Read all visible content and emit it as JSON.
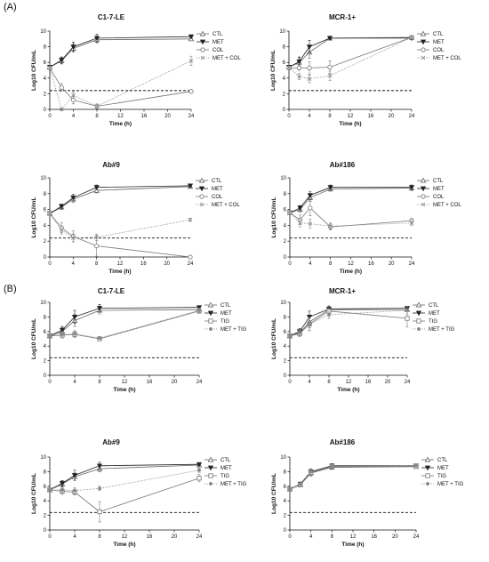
{
  "figure": {
    "section_a": "(A)",
    "section_b": "(B)"
  },
  "chart_data": [
    {
      "type": "line",
      "title": "C1-7-LE",
      "xlabel": "Time (h)",
      "ylabel": "Log10 CFU/mL",
      "xlim": [
        0,
        24
      ],
      "ylim": [
        0,
        10
      ],
      "xticks": [
        0,
        4,
        8,
        12,
        16,
        20,
        24
      ],
      "yticks": [
        0,
        2,
        4,
        6,
        8,
        10
      ],
      "threshold": 2.4,
      "x": [
        0,
        2,
        4,
        8,
        24
      ],
      "legend": "right",
      "series": [
        {
          "name": "CTL",
          "marker": "tri-up-open",
          "dash": "solid",
          "values": [
            5.4,
            6.2,
            7.8,
            8.9,
            9.0
          ],
          "errors": [
            0.2,
            0.4,
            0.5,
            0.4,
            0.2
          ]
        },
        {
          "name": "MET",
          "marker": "tri-down-filled",
          "dash": "solid",
          "values": [
            5.4,
            6.3,
            8.0,
            9.1,
            9.3
          ],
          "errors": [
            0.2,
            0.4,
            0.6,
            0.5,
            0.2
          ]
        },
        {
          "name": "COL",
          "marker": "circle-open",
          "dash": "solid",
          "values": [
            5.3,
            2.8,
            1.2,
            0.4,
            2.3
          ],
          "errors": [
            0.2,
            0.5,
            0.5,
            0.3,
            0.2
          ]
        },
        {
          "name": "MET + COL",
          "marker": "x",
          "dash": "dot",
          "values": [
            5.3,
            0.0,
            1.8,
            0.4,
            6.2
          ],
          "errors": [
            0.2,
            0.2,
            0.4,
            0.3,
            0.6
          ]
        }
      ]
    },
    {
      "type": "line",
      "title": "MCR-1+",
      "xlabel": "Time (h)",
      "ylabel": "Log10 CFU/mL",
      "xlim": [
        0,
        24
      ],
      "ylim": [
        0,
        10
      ],
      "xticks": [
        0,
        4,
        8,
        12,
        16,
        20,
        24
      ],
      "yticks": [
        0,
        2,
        4,
        6,
        8,
        10
      ],
      "threshold": 2.4,
      "x": [
        0,
        2,
        4,
        8,
        24
      ],
      "legend": "right",
      "series": [
        {
          "name": "CTL",
          "marker": "tri-up-open",
          "dash": "solid",
          "values": [
            5.4,
            6.0,
            7.3,
            9.1,
            9.2
          ],
          "errors": [
            0.2,
            0.6,
            0.8,
            0.2,
            0.2
          ]
        },
        {
          "name": "MET",
          "marker": "tri-down-filled",
          "dash": "solid",
          "values": [
            5.4,
            6.1,
            8.0,
            9.1,
            9.1
          ],
          "errors": [
            0.2,
            0.6,
            0.8,
            0.2,
            0.2
          ]
        },
        {
          "name": "COL",
          "marker": "circle-open",
          "dash": "solid",
          "values": [
            5.3,
            5.3,
            5.3,
            5.4,
            9.2
          ],
          "errors": [
            0.2,
            0.3,
            0.8,
            0.8,
            0.2
          ]
        },
        {
          "name": "MET + COL",
          "marker": "x",
          "dash": "dot",
          "values": [
            5.3,
            4.2,
            3.9,
            4.3,
            9.2
          ],
          "errors": [
            0.2,
            0.4,
            0.5,
            0.6,
            0.2
          ]
        }
      ]
    },
    {
      "type": "line",
      "title": "Ab#9",
      "xlabel": "Time (h)",
      "ylabel": "Log10 CFU/mL",
      "xlim": [
        0,
        24
      ],
      "ylim": [
        0,
        10
      ],
      "xticks": [
        0,
        4,
        8,
        12,
        16,
        20,
        24
      ],
      "yticks": [
        0,
        2,
        4,
        6,
        8,
        10
      ],
      "threshold": 2.4,
      "x": [
        0,
        2,
        4,
        8,
        24
      ],
      "legend": "right",
      "series": [
        {
          "name": "CTL",
          "marker": "tri-up-open",
          "dash": "solid",
          "values": [
            5.5,
            6.3,
            7.3,
            8.4,
            8.9
          ],
          "errors": [
            0.2,
            0.3,
            0.4,
            0.3,
            0.2
          ]
        },
        {
          "name": "MET",
          "marker": "tri-down-filled",
          "dash": "solid",
          "values": [
            5.5,
            6.4,
            7.5,
            8.8,
            9.0
          ],
          "errors": [
            0.2,
            0.3,
            0.4,
            0.3,
            0.2
          ]
        },
        {
          "name": "COL",
          "marker": "circle-open",
          "dash": "solid",
          "values": [
            5.5,
            3.7,
            2.6,
            1.4,
            0.0
          ],
          "errors": [
            0.2,
            0.6,
            0.7,
            1.3,
            0.1
          ]
        },
        {
          "name": "MET + COL",
          "marker": "x",
          "dash": "dot",
          "values": [
            5.5,
            3.4,
            2.4,
            2.5,
            4.7
          ],
          "errors": [
            0.2,
            0.5,
            0.5,
            0.4,
            0.2
          ]
        }
      ]
    },
    {
      "type": "line",
      "title": "Ab#186",
      "xlabel": "Time (h)",
      "ylabel": "Log10 CFU/mL",
      "xlim": [
        0,
        24
      ],
      "ylim": [
        0,
        10
      ],
      "xticks": [
        0,
        4,
        8,
        12,
        16,
        20,
        24
      ],
      "yticks": [
        0,
        2,
        4,
        6,
        8,
        10
      ],
      "threshold": 2.4,
      "x": [
        0,
        2,
        4,
        8,
        24
      ],
      "legend": "right",
      "series": [
        {
          "name": "CTL",
          "marker": "tri-up-open",
          "dash": "solid",
          "values": [
            5.6,
            6.0,
            7.5,
            8.6,
            8.7
          ],
          "errors": [
            0.2,
            0.3,
            0.5,
            0.3,
            0.3
          ]
        },
        {
          "name": "MET",
          "marker": "tri-down-filled",
          "dash": "solid",
          "values": [
            5.6,
            6.2,
            7.8,
            8.8,
            8.8
          ],
          "errors": [
            0.2,
            0.3,
            0.5,
            0.3,
            0.3
          ]
        },
        {
          "name": "COL",
          "marker": "circle-open",
          "dash": "solid",
          "values": [
            5.6,
            4.7,
            6.2,
            3.8,
            4.6
          ],
          "errors": [
            0.2,
            0.6,
            1.0,
            0.4,
            0.3
          ]
        },
        {
          "name": "MET + COL",
          "marker": "x",
          "dash": "dot",
          "values": [
            5.6,
            4.3,
            4.2,
            3.9,
            4.3
          ],
          "errors": [
            0.2,
            0.5,
            0.6,
            0.4,
            0.3
          ]
        }
      ]
    },
    {
      "type": "line",
      "title": "C1-7-LE",
      "xlabel": "Time (h)",
      "ylabel": "Log10 CFU/mL",
      "xlim": [
        0,
        24
      ],
      "ylim": [
        0,
        10
      ],
      "xticks": [
        0,
        4,
        8,
        12,
        16,
        20,
        24
      ],
      "yticks": [
        0,
        2,
        4,
        6,
        8,
        10
      ],
      "threshold": 2.4,
      "x": [
        0,
        2,
        4,
        8,
        24
      ],
      "legend": "right",
      "series": [
        {
          "name": "CTL",
          "marker": "tri-up-open",
          "dash": "solid",
          "values": [
            5.4,
            6.0,
            7.5,
            8.9,
            9.0
          ],
          "errors": [
            0.2,
            0.5,
            0.8,
            0.5,
            0.2
          ]
        },
        {
          "name": "MET",
          "marker": "tri-down-filled",
          "dash": "solid",
          "values": [
            5.4,
            6.2,
            8.0,
            9.2,
            9.3
          ],
          "errors": [
            0.2,
            0.5,
            0.9,
            0.5,
            0.2
          ]
        },
        {
          "name": "TIG",
          "marker": "square-open",
          "dash": "solid",
          "values": [
            5.4,
            5.5,
            5.6,
            5.0,
            8.8
          ],
          "errors": [
            0.2,
            0.4,
            0.4,
            0.2,
            0.3
          ]
        },
        {
          "name": "MET + TIG",
          "marker": "dot-filled",
          "dash": "dot",
          "values": [
            5.4,
            5.6,
            5.7,
            5.1,
            8.9
          ],
          "errors": [
            0.2,
            0.4,
            0.4,
            0.2,
            0.3
          ]
        }
      ]
    },
    {
      "type": "line",
      "title": "MCR-1+",
      "xlabel": "Time (h)",
      "ylabel": "Log10 CFU/mL",
      "xlim": [
        0,
        24
      ],
      "ylim": [
        0,
        10
      ],
      "xticks": [
        0,
        4,
        8,
        12,
        16,
        20,
        24
      ],
      "yticks": [
        0,
        2,
        4,
        6,
        8,
        10
      ],
      "threshold": 2.4,
      "x": [
        0,
        2,
        4,
        8,
        24
      ],
      "legend": "right",
      "series": [
        {
          "name": "CTL",
          "marker": "tri-up-open",
          "dash": "solid",
          "values": [
            5.4,
            5.8,
            7.3,
            9.0,
            9.0
          ],
          "errors": [
            0.2,
            0.4,
            0.8,
            0.4,
            0.2
          ]
        },
        {
          "name": "MET",
          "marker": "tri-down-filled",
          "dash": "solid",
          "values": [
            5.4,
            6.0,
            8.0,
            9.1,
            9.2
          ],
          "errors": [
            0.2,
            0.4,
            0.8,
            0.4,
            0.2
          ]
        },
        {
          "name": "TIG",
          "marker": "square-open",
          "dash": "solid",
          "values": [
            5.4,
            5.7,
            7.0,
            8.8,
            7.8
          ],
          "errors": [
            0.2,
            0.4,
            0.9,
            0.5,
            1.2
          ]
        },
        {
          "name": "MET + TIG",
          "marker": "dot-filled",
          "dash": "dot",
          "values": [
            5.4,
            5.8,
            7.0,
            8.3,
            8.9
          ],
          "errors": [
            0.2,
            0.4,
            0.9,
            0.5,
            0.5
          ]
        }
      ]
    },
    {
      "type": "line",
      "title": "Ab#9",
      "xlabel": "Time (h)",
      "ylabel": "Log10 CFU/mL",
      "xlim": [
        0,
        24
      ],
      "ylim": [
        0,
        10
      ],
      "xticks": [
        0,
        4,
        8,
        12,
        16,
        20,
        24
      ],
      "yticks": [
        0,
        2,
        4,
        6,
        8,
        10
      ],
      "threshold": 2.4,
      "x": [
        0,
        2,
        4,
        8,
        24
      ],
      "legend": "right",
      "series": [
        {
          "name": "CTL",
          "marker": "tri-up-open",
          "dash": "solid",
          "values": [
            5.5,
            6.3,
            7.3,
            8.4,
            8.9
          ],
          "errors": [
            0.2,
            0.4,
            0.5,
            0.4,
            0.2
          ]
        },
        {
          "name": "MET",
          "marker": "tri-down-filled",
          "dash": "solid",
          "values": [
            5.5,
            6.4,
            7.5,
            8.8,
            9.0
          ],
          "errors": [
            0.2,
            0.4,
            0.7,
            0.5,
            0.2
          ]
        },
        {
          "name": "TIG",
          "marker": "square-open",
          "dash": "solid",
          "values": [
            5.5,
            5.3,
            5.2,
            2.5,
            7.1
          ],
          "errors": [
            0.2,
            0.4,
            0.4,
            1.4,
            0.5
          ]
        },
        {
          "name": "MET + TIG",
          "marker": "dot-filled",
          "dash": "dot",
          "values": [
            5.5,
            5.5,
            5.4,
            5.7,
            8.2
          ],
          "errors": [
            0.2,
            0.3,
            0.4,
            0.3,
            0.3
          ]
        }
      ]
    },
    {
      "type": "line",
      "title": "Ab#186",
      "xlabel": "Time (h)",
      "ylabel": "Log10 CFU/mL",
      "xlim": [
        0,
        24
      ],
      "ylim": [
        0,
        10
      ],
      "xticks": [
        0,
        4,
        8,
        12,
        16,
        20,
        24
      ],
      "yticks": [
        0,
        2,
        4,
        6,
        8,
        10
      ],
      "threshold": 2.4,
      "x": [
        0,
        2,
        4,
        8,
        24
      ],
      "legend": "right",
      "series": [
        {
          "name": "CTL",
          "marker": "tri-up-open",
          "dash": "solid",
          "values": [
            5.6,
            6.2,
            7.8,
            8.6,
            8.7
          ],
          "errors": [
            0.2,
            0.3,
            0.4,
            0.3,
            0.2
          ]
        },
        {
          "name": "MET",
          "marker": "tri-down-filled",
          "dash": "solid",
          "values": [
            5.6,
            6.3,
            8.0,
            8.8,
            8.8
          ],
          "errors": [
            0.2,
            0.3,
            0.4,
            0.3,
            0.2
          ]
        },
        {
          "name": "TIG",
          "marker": "square-open",
          "dash": "solid",
          "values": [
            5.6,
            6.2,
            7.9,
            8.7,
            8.7
          ],
          "errors": [
            0.2,
            0.3,
            0.4,
            0.3,
            0.2
          ]
        },
        {
          "name": "MET + TIG",
          "marker": "dot-filled",
          "dash": "dot",
          "values": [
            5.6,
            6.3,
            8.0,
            8.7,
            8.8
          ],
          "errors": [
            0.2,
            0.3,
            0.4,
            0.3,
            0.2
          ]
        }
      ]
    }
  ]
}
